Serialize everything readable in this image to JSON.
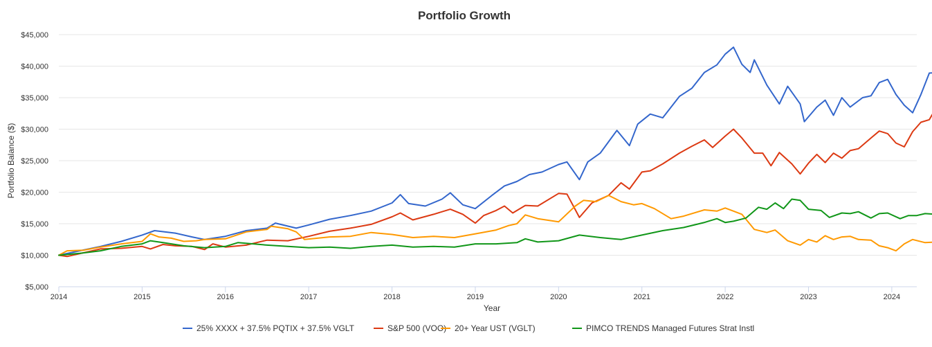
{
  "chart_data": {
    "type": "line",
    "title": "Portfolio Growth",
    "xlabel": "Year",
    "ylabel": "Portfolio Balance ($)",
    "xlim": [
      2014,
      2024.3
    ],
    "ylim": [
      5000,
      45000
    ],
    "x_ticks": [
      "2014",
      "2015",
      "2016",
      "2017",
      "2018",
      "2019",
      "2020",
      "2021",
      "2022",
      "2023",
      "2024"
    ],
    "y_ticks": [
      "$5,000",
      "$10,000",
      "$15,000",
      "$20,000",
      "$25,000",
      "$30,000",
      "$35,000",
      "$40,000",
      "$45,000"
    ],
    "grid": true,
    "legend_position": "bottom",
    "series": [
      {
        "name": "25% XXXX + 37.5% PQTIX + 37.5% VGLT",
        "color": "#3366cc",
        "points": [
          [
            2014.0,
            10000
          ],
          [
            2014.5,
            11400
          ],
          [
            2014.75,
            12200
          ],
          [
            2015.0,
            13200
          ],
          [
            2015.15,
            13900
          ],
          [
            2015.4,
            13500
          ],
          [
            2015.6,
            12900
          ],
          [
            2015.75,
            12500
          ],
          [
            2016.0,
            13000
          ],
          [
            2016.25,
            13900
          ],
          [
            2016.5,
            14300
          ],
          [
            2016.6,
            15100
          ],
          [
            2016.85,
            14300
          ],
          [
            2017.0,
            14800
          ],
          [
            2017.25,
            15700
          ],
          [
            2017.5,
            16300
          ],
          [
            2017.75,
            17000
          ],
          [
            2018.0,
            18300
          ],
          [
            2018.1,
            19600
          ],
          [
            2018.2,
            18200
          ],
          [
            2018.4,
            17800
          ],
          [
            2018.6,
            18900
          ],
          [
            2018.7,
            19900
          ],
          [
            2018.85,
            18000
          ],
          [
            2019.0,
            17400
          ],
          [
            2019.2,
            19500
          ],
          [
            2019.35,
            21000
          ],
          [
            2019.5,
            21700
          ],
          [
            2019.65,
            22800
          ],
          [
            2019.8,
            23200
          ],
          [
            2020.0,
            24400
          ],
          [
            2020.1,
            24800
          ],
          [
            2020.25,
            22000
          ],
          [
            2020.35,
            24800
          ],
          [
            2020.5,
            26200
          ],
          [
            2020.7,
            29800
          ],
          [
            2020.85,
            27400
          ],
          [
            2020.95,
            30800
          ],
          [
            2021.1,
            32400
          ],
          [
            2021.25,
            31800
          ],
          [
            2021.45,
            35200
          ],
          [
            2021.6,
            36500
          ],
          [
            2021.75,
            39000
          ],
          [
            2021.9,
            40200
          ],
          [
            2022.0,
            41900
          ],
          [
            2022.1,
            43000
          ],
          [
            2022.2,
            40300
          ],
          [
            2022.3,
            39000
          ],
          [
            2022.35,
            41000
          ],
          [
            2022.5,
            37000
          ],
          [
            2022.65,
            34000
          ],
          [
            2022.75,
            36800
          ],
          [
            2022.9,
            34000
          ],
          [
            2022.95,
            31200
          ],
          [
            2023.1,
            33500
          ],
          [
            2023.2,
            34600
          ],
          [
            2023.3,
            32200
          ],
          [
            2023.4,
            35000
          ],
          [
            2023.5,
            33500
          ],
          [
            2023.65,
            35000
          ],
          [
            2023.75,
            35300
          ],
          [
            2023.85,
            37400
          ],
          [
            2023.95,
            37900
          ],
          [
            2024.05,
            35500
          ],
          [
            2024.15,
            33800
          ],
          [
            2024.25,
            32600
          ],
          [
            2024.35,
            35500
          ],
          [
            2024.45,
            38900
          ],
          [
            2024.55,
            39000
          ],
          [
            2024.65,
            41500
          ]
        ]
      },
      {
        "name": "S&P 500 (VOO)",
        "color": "#dc3912",
        "points": [
          [
            2014.0,
            10000
          ],
          [
            2014.1,
            9800
          ],
          [
            2014.5,
            11000
          ],
          [
            2014.75,
            11100
          ],
          [
            2015.0,
            11400
          ],
          [
            2015.1,
            11000
          ],
          [
            2015.25,
            11700
          ],
          [
            2015.4,
            11500
          ],
          [
            2015.6,
            11400
          ],
          [
            2015.75,
            10900
          ],
          [
            2015.85,
            11800
          ],
          [
            2016.0,
            11300
          ],
          [
            2016.25,
            11600
          ],
          [
            2016.5,
            12400
          ],
          [
            2016.75,
            12300
          ],
          [
            2017.0,
            13000
          ],
          [
            2017.25,
            13800
          ],
          [
            2017.5,
            14300
          ],
          [
            2017.75,
            14900
          ],
          [
            2018.0,
            16100
          ],
          [
            2018.1,
            16700
          ],
          [
            2018.25,
            15600
          ],
          [
            2018.5,
            16500
          ],
          [
            2018.7,
            17300
          ],
          [
            2018.85,
            16500
          ],
          [
            2019.0,
            15100
          ],
          [
            2019.1,
            16300
          ],
          [
            2019.25,
            17100
          ],
          [
            2019.35,
            17800
          ],
          [
            2019.45,
            16700
          ],
          [
            2019.6,
            17900
          ],
          [
            2019.75,
            17800
          ],
          [
            2020.0,
            19800
          ],
          [
            2020.1,
            19700
          ],
          [
            2020.25,
            16000
          ],
          [
            2020.4,
            18300
          ],
          [
            2020.6,
            19500
          ],
          [
            2020.75,
            21500
          ],
          [
            2020.85,
            20500
          ],
          [
            2021.0,
            23200
          ],
          [
            2021.1,
            23400
          ],
          [
            2021.25,
            24500
          ],
          [
            2021.45,
            26200
          ],
          [
            2021.6,
            27300
          ],
          [
            2021.75,
            28300
          ],
          [
            2021.85,
            27100
          ],
          [
            2022.0,
            28900
          ],
          [
            2022.1,
            30000
          ],
          [
            2022.2,
            28600
          ],
          [
            2022.35,
            26200
          ],
          [
            2022.45,
            26200
          ],
          [
            2022.55,
            24200
          ],
          [
            2022.65,
            26300
          ],
          [
            2022.8,
            24500
          ],
          [
            2022.9,
            22900
          ],
          [
            2023.0,
            24600
          ],
          [
            2023.1,
            26000
          ],
          [
            2023.2,
            24700
          ],
          [
            2023.3,
            26200
          ],
          [
            2023.4,
            25400
          ],
          [
            2023.5,
            26600
          ],
          [
            2023.6,
            26900
          ],
          [
            2023.75,
            28600
          ],
          [
            2023.85,
            29700
          ],
          [
            2023.95,
            29300
          ],
          [
            2024.05,
            27800
          ],
          [
            2024.15,
            27200
          ],
          [
            2024.25,
            29600
          ],
          [
            2024.35,
            31100
          ],
          [
            2024.45,
            31500
          ],
          [
            2024.55,
            33800
          ]
        ]
      },
      {
        "name": "20+ Year UST (VGLT)",
        "color": "#ff9900",
        "points": [
          [
            2014.0,
            10000
          ],
          [
            2014.1,
            10700
          ],
          [
            2014.3,
            10800
          ],
          [
            2014.5,
            11300
          ],
          [
            2014.75,
            11800
          ],
          [
            2015.0,
            12200
          ],
          [
            2015.1,
            13400
          ],
          [
            2015.2,
            12900
          ],
          [
            2015.35,
            12700
          ],
          [
            2015.5,
            12200
          ],
          [
            2015.65,
            12300
          ],
          [
            2015.75,
            12500
          ],
          [
            2016.0,
            12600
          ],
          [
            2016.25,
            13700
          ],
          [
            2016.5,
            14100
          ],
          [
            2016.55,
            14600
          ],
          [
            2016.75,
            14200
          ],
          [
            2016.85,
            13700
          ],
          [
            2016.95,
            12500
          ],
          [
            2017.25,
            12900
          ],
          [
            2017.5,
            13000
          ],
          [
            2017.75,
            13600
          ],
          [
            2018.0,
            13300
          ],
          [
            2018.25,
            12800
          ],
          [
            2018.5,
            13000
          ],
          [
            2018.75,
            12800
          ],
          [
            2019.0,
            13400
          ],
          [
            2019.25,
            14000
          ],
          [
            2019.4,
            14700
          ],
          [
            2019.5,
            15000
          ],
          [
            2019.6,
            16400
          ],
          [
            2019.75,
            15800
          ],
          [
            2020.0,
            15300
          ],
          [
            2020.2,
            17800
          ],
          [
            2020.3,
            18700
          ],
          [
            2020.45,
            18500
          ],
          [
            2020.6,
            19500
          ],
          [
            2020.75,
            18500
          ],
          [
            2020.9,
            18000
          ],
          [
            2021.0,
            18200
          ],
          [
            2021.15,
            17400
          ],
          [
            2021.35,
            15800
          ],
          [
            2021.5,
            16200
          ],
          [
            2021.75,
            17200
          ],
          [
            2021.9,
            17000
          ],
          [
            2022.0,
            17500
          ],
          [
            2022.1,
            17000
          ],
          [
            2022.2,
            16500
          ],
          [
            2022.35,
            14100
          ],
          [
            2022.5,
            13600
          ],
          [
            2022.6,
            14000
          ],
          [
            2022.75,
            12300
          ],
          [
            2022.9,
            11600
          ],
          [
            2023.0,
            12500
          ],
          [
            2023.1,
            12100
          ],
          [
            2023.2,
            13100
          ],
          [
            2023.3,
            12500
          ],
          [
            2023.4,
            12900
          ],
          [
            2023.5,
            13000
          ],
          [
            2023.6,
            12500
          ],
          [
            2023.75,
            12400
          ],
          [
            2023.85,
            11500
          ],
          [
            2023.95,
            11200
          ],
          [
            2024.05,
            10700
          ],
          [
            2024.15,
            11800
          ],
          [
            2024.25,
            12500
          ],
          [
            2024.4,
            12000
          ],
          [
            2024.55,
            12100
          ]
        ]
      },
      {
        "name": "PIMCO TRENDS Managed Futures Strat Instl",
        "color": "#109618",
        "points": [
          [
            2014.0,
            10000
          ],
          [
            2014.25,
            10300
          ],
          [
            2014.5,
            10700
          ],
          [
            2014.75,
            11400
          ],
          [
            2015.0,
            11800
          ],
          [
            2015.1,
            12300
          ],
          [
            2015.25,
            12000
          ],
          [
            2015.5,
            11500
          ],
          [
            2015.75,
            11200
          ],
          [
            2016.0,
            11400
          ],
          [
            2016.15,
            12000
          ],
          [
            2016.5,
            11600
          ],
          [
            2016.75,
            11400
          ],
          [
            2017.0,
            11200
          ],
          [
            2017.25,
            11300
          ],
          [
            2017.5,
            11100
          ],
          [
            2017.75,
            11400
          ],
          [
            2018.0,
            11600
          ],
          [
            2018.25,
            11300
          ],
          [
            2018.5,
            11400
          ],
          [
            2018.75,
            11300
          ],
          [
            2019.0,
            11800
          ],
          [
            2019.25,
            11800
          ],
          [
            2019.5,
            12000
          ],
          [
            2019.6,
            12600
          ],
          [
            2019.75,
            12100
          ],
          [
            2020.0,
            12300
          ],
          [
            2020.25,
            13200
          ],
          [
            2020.5,
            12800
          ],
          [
            2020.75,
            12500
          ],
          [
            2021.0,
            13200
          ],
          [
            2021.25,
            13900
          ],
          [
            2021.5,
            14400
          ],
          [
            2021.75,
            15200
          ],
          [
            2021.9,
            15800
          ],
          [
            2022.0,
            15200
          ],
          [
            2022.1,
            15400
          ],
          [
            2022.25,
            15900
          ],
          [
            2022.4,
            17600
          ],
          [
            2022.5,
            17300
          ],
          [
            2022.6,
            18300
          ],
          [
            2022.7,
            17400
          ],
          [
            2022.8,
            18900
          ],
          [
            2022.9,
            18700
          ],
          [
            2023.0,
            17300
          ],
          [
            2023.15,
            17100
          ],
          [
            2023.25,
            16000
          ],
          [
            2023.4,
            16700
          ],
          [
            2023.5,
            16600
          ],
          [
            2023.6,
            16900
          ],
          [
            2023.75,
            15900
          ],
          [
            2023.85,
            16600
          ],
          [
            2023.95,
            16700
          ],
          [
            2024.1,
            15800
          ],
          [
            2024.2,
            16300
          ],
          [
            2024.3,
            16300
          ],
          [
            2024.4,
            16600
          ],
          [
            2024.55,
            16500
          ]
        ]
      }
    ]
  }
}
